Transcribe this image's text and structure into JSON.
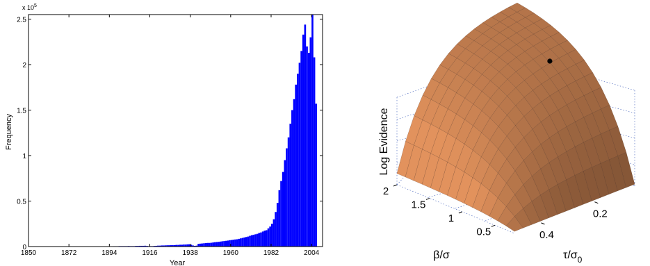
{
  "chart_data": [
    {
      "type": "bar",
      "title": "",
      "xlabel": "Year",
      "ylabel": "Frequency",
      "y_exponent_label": "x 10",
      "y_exponent_power": "5",
      "xlim": [
        1850,
        2010
      ],
      "ylim": [
        0,
        2.55
      ],
      "bar_color": "#0000ff",
      "x_ticks": [
        1850,
        1872,
        1894,
        1916,
        1938,
        1960,
        1982,
        2004
      ],
      "x_tick_labels": [
        "1850",
        "1872",
        "1894",
        "1916",
        "1938",
        "1960",
        "1982",
        "2004"
      ],
      "y_ticks": [
        0,
        0.5,
        1,
        1.5,
        2,
        2.5
      ],
      "y_tick_labels": [
        "0",
        "0.5",
        "1",
        "1.5",
        "2",
        "2.5"
      ],
      "bin_start": 1850,
      "bin_width": 1,
      "values": [
        0.001,
        0.001,
        0.001,
        0.001,
        0.001,
        0.001,
        0.001,
        0.001,
        0.001,
        0.001,
        0.001,
        0.001,
        0.001,
        0.001,
        0.001,
        0.001,
        0.001,
        0.001,
        0.001,
        0.001,
        0.002,
        0.002,
        0.002,
        0.002,
        0.002,
        0.002,
        0.002,
        0.002,
        0.002,
        0.002,
        0.002,
        0.002,
        0.002,
        0.002,
        0.002,
        0.002,
        0.002,
        0.002,
        0.002,
        0.002,
        0.003,
        0.003,
        0.003,
        0.003,
        0.003,
        0.003,
        0.004,
        0.004,
        0.004,
        0.005,
        0.005,
        0.005,
        0.005,
        0.005,
        0.006,
        0.005,
        0.005,
        0.005,
        0.007,
        0.007,
        0.008,
        0.008,
        0.008,
        0.009,
        0.007,
        0.005,
        0.005,
        0.005,
        0.007,
        0.008,
        0.01,
        0.01,
        0.012,
        0.012,
        0.013,
        0.014,
        0.014,
        0.015,
        0.016,
        0.016,
        0.018,
        0.018,
        0.02,
        0.02,
        0.022,
        0.022,
        0.024,
        0.025,
        0.02,
        0.012,
        0.008,
        0.01,
        0.03,
        0.032,
        0.034,
        0.036,
        0.038,
        0.04,
        0.04,
        0.042,
        0.045,
        0.048,
        0.05,
        0.052,
        0.055,
        0.058,
        0.06,
        0.063,
        0.066,
        0.07,
        0.072,
        0.075,
        0.078,
        0.08,
        0.085,
        0.09,
        0.095,
        0.1,
        0.105,
        0.11,
        0.118,
        0.125,
        0.13,
        0.135,
        0.14,
        0.15,
        0.155,
        0.165,
        0.175,
        0.18,
        0.2,
        0.22,
        0.25,
        0.3,
        0.38,
        0.48,
        0.62,
        0.72,
        0.82,
        0.95,
        1.08,
        1.2,
        1.35,
        1.5,
        1.62,
        1.78,
        1.9,
        2.02,
        2.15,
        2.33,
        2.44,
        2.2,
        2.13,
        2.3,
        2.55,
        2.08,
        1.57
      ]
    },
    {
      "type": "surface",
      "title": "",
      "zlabel": "Log Evidence",
      "xlabel_left": "β/σ",
      "xlabel_right_main": "τ/σ",
      "xlabel_right_sub": "0",
      "beta_range": [
        0.2,
        2.0
      ],
      "tau_range": [
        0.05,
        0.5
      ],
      "beta_ticks": [
        0.5,
        1,
        1.5,
        2
      ],
      "beta_tick_labels": [
        "0.5",
        "1",
        "1.5",
        "2"
      ],
      "tau_ticks": [
        0.2,
        0.4
      ],
      "tau_tick_labels": [
        "0.2",
        "0.4"
      ],
      "surface_color": "#b5754a",
      "marker": {
        "beta": 1.05,
        "tau": 0.16,
        "color": "#000000"
      }
    }
  ]
}
